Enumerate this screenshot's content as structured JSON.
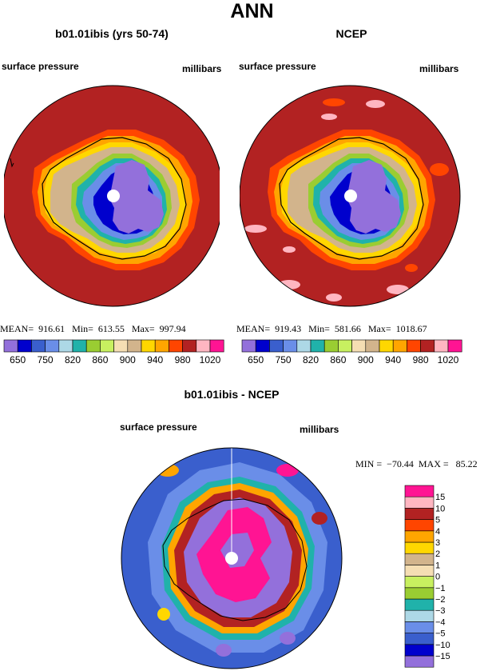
{
  "title": "ANN",
  "panels": [
    {
      "title": "b01.01ibis (yrs 50-74)",
      "left_label": "surface pressure",
      "right_label": "millibars",
      "stats": {
        "mean": "916.61",
        "min": "613.55",
        "max": "997.94"
      }
    },
    {
      "title": "NCEP",
      "left_label": "surface pressure",
      "right_label": "millibars",
      "stats": {
        "mean": "919.43",
        "min": "581.66",
        "max": "1018.67"
      }
    }
  ],
  "diff_panel": {
    "title": "b01.01ibis - NCEP",
    "left_label": "surface pressure",
    "right_label": "millibars",
    "stats": {
      "min": "−70.44",
      "max": "85.22"
    }
  },
  "stat_labels": {
    "mean": "MEAN=",
    "min": "Min=",
    "max": "Max=",
    "min_eq": "MIN =",
    "max_eq": "MAX ="
  },
  "colorbar_main": {
    "colors": [
      "#9370db",
      "#0000cd",
      "#3a5fcd",
      "#6a8ee8",
      "#add8e6",
      "#20b2aa",
      "#9acd32",
      "#c8f060",
      "#f5deb3",
      "#d2b48c",
      "#ffd700",
      "#ffa500",
      "#ff4500",
      "#b22222",
      "#ffb6c1",
      "#ff1493"
    ],
    "labels": [
      "650",
      "750",
      "820",
      "860",
      "900",
      "940",
      "980",
      "1020"
    ]
  },
  "colorbar_diff": {
    "colors": [
      "#9370db",
      "#0000cd",
      "#3a5fcd",
      "#6a8ee8",
      "#add8e6",
      "#20b2aa",
      "#9acd32",
      "#c8f060",
      "#f5deb3",
      "#d2b48c",
      "#ffd700",
      "#ffa500",
      "#ff4500",
      "#b22222",
      "#ffb6c1",
      "#ff1493"
    ],
    "labels": [
      "−15",
      "−10",
      "−5",
      "−4",
      "−3",
      "−2",
      "−1",
      "0",
      "1",
      "2",
      "3",
      "4",
      "5",
      "10",
      "15"
    ]
  }
}
